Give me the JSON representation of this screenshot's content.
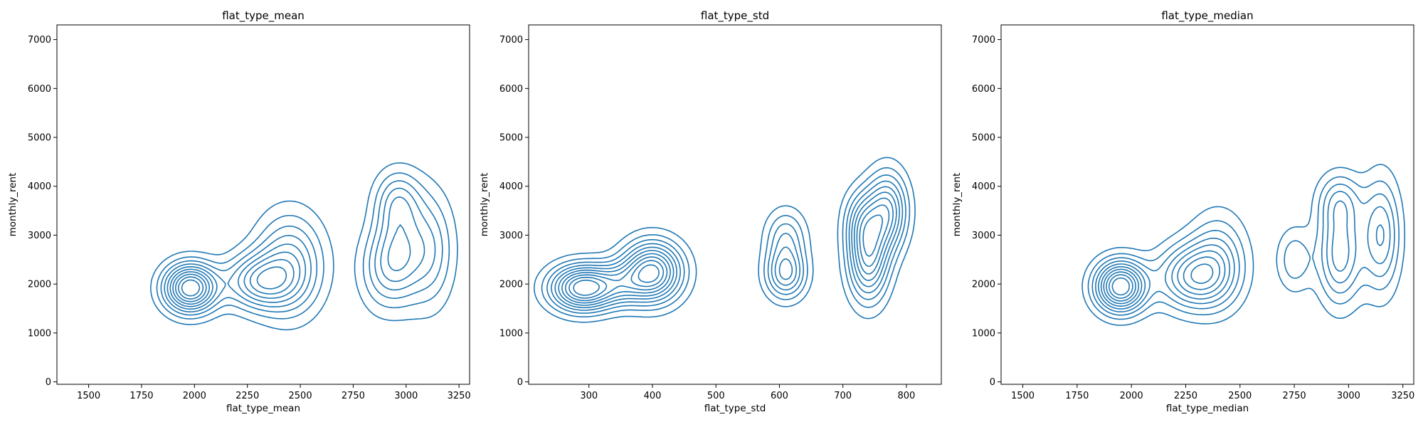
{
  "chart_data": [
    {
      "type": "contour",
      "title": "flat_type_mean",
      "xlabel": "flat_type_mean",
      "ylabel": "monthly_rent",
      "xlim": [
        1350,
        3300
      ],
      "ylim": [
        -50,
        7300
      ],
      "xticks": [
        1500,
        1750,
        2000,
        2250,
        2500,
        2750,
        3000,
        3250
      ],
      "yticks": [
        0,
        1000,
        2000,
        3000,
        4000,
        5000,
        6000,
        7000
      ],
      "line_color": "#1f77b4",
      "modes": [
        {
          "cx": 1980,
          "cy": 1920,
          "sx": 85,
          "sy": 340,
          "w": 1.0
        },
        {
          "cx": 2300,
          "cy": 2050,
          "sx": 110,
          "sy": 380,
          "w": 0.55
        },
        {
          "cx": 2450,
          "cy": 2400,
          "sx": 110,
          "sy": 700,
          "w": 0.5
        },
        {
          "cx": 2960,
          "cy": 2550,
          "sx": 75,
          "sy": 650,
          "w": 0.45
        },
        {
          "cx": 2960,
          "cy": 3700,
          "sx": 75,
          "sy": 450,
          "w": 0.35
        },
        {
          "cx": 3110,
          "cy": 2700,
          "sx": 80,
          "sy": 800,
          "w": 0.35
        },
        {
          "cx": 2860,
          "cy": 2300,
          "sx": 70,
          "sy": 600,
          "w": 0.2
        }
      ]
    },
    {
      "type": "contour",
      "title": "flat_type_std",
      "xlabel": "flat_type_std",
      "ylabel": "monthly_rent",
      "xlim": [
        205,
        855
      ],
      "ylim": [
        -50,
        7300
      ],
      "xticks": [
        300,
        400,
        500,
        600,
        700,
        800
      ],
      "yticks": [
        0,
        1000,
        2000,
        3000,
        4000,
        5000,
        6000,
        7000
      ],
      "line_color": "#1f77b4",
      "modes": [
        {
          "cx": 290,
          "cy": 1920,
          "sx": 35,
          "sy": 320,
          "w": 1.0
        },
        {
          "cx": 400,
          "cy": 2250,
          "sx": 32,
          "sy": 420,
          "w": 0.95
        },
        {
          "cx": 350,
          "cy": 2000,
          "sx": 30,
          "sy": 300,
          "w": 0.3
        },
        {
          "cx": 610,
          "cy": 2200,
          "sx": 22,
          "sy": 350,
          "w": 0.55
        },
        {
          "cx": 610,
          "cy": 2950,
          "sx": 22,
          "sy": 400,
          "w": 0.35
        },
        {
          "cx": 740,
          "cy": 2500,
          "sx": 22,
          "sy": 600,
          "w": 0.7
        },
        {
          "cx": 770,
          "cy": 3500,
          "sx": 22,
          "sy": 550,
          "w": 0.65
        },
        {
          "cx": 730,
          "cy": 3300,
          "sx": 20,
          "sy": 450,
          "w": 0.35
        }
      ]
    },
    {
      "type": "contour",
      "title": "flat_type_median",
      "xlabel": "flat_type_median",
      "ylabel": "monthly_rent",
      "xlim": [
        1400,
        3300
      ],
      "ylim": [
        -50,
        7300
      ],
      "xticks": [
        1500,
        1750,
        2000,
        2250,
        2500,
        2750,
        3000,
        3250
      ],
      "yticks": [
        0,
        1000,
        2000,
        3000,
        4000,
        5000,
        6000,
        7000
      ],
      "line_color": "#1f77b4",
      "modes": [
        {
          "cx": 1950,
          "cy": 1950,
          "sx": 80,
          "sy": 360,
          "w": 1.0
        },
        {
          "cx": 2280,
          "cy": 2150,
          "sx": 110,
          "sy": 450,
          "w": 0.6
        },
        {
          "cx": 2400,
          "cy": 2500,
          "sx": 90,
          "sy": 650,
          "w": 0.35
        },
        {
          "cx": 2750,
          "cy": 2500,
          "sx": 55,
          "sy": 450,
          "w": 0.25
        },
        {
          "cx": 2960,
          "cy": 2600,
          "sx": 70,
          "sy": 700,
          "w": 0.5
        },
        {
          "cx": 2960,
          "cy": 3700,
          "sx": 70,
          "sy": 400,
          "w": 0.3
        },
        {
          "cx": 3150,
          "cy": 3000,
          "sx": 60,
          "sy": 800,
          "w": 0.45
        }
      ]
    }
  ]
}
